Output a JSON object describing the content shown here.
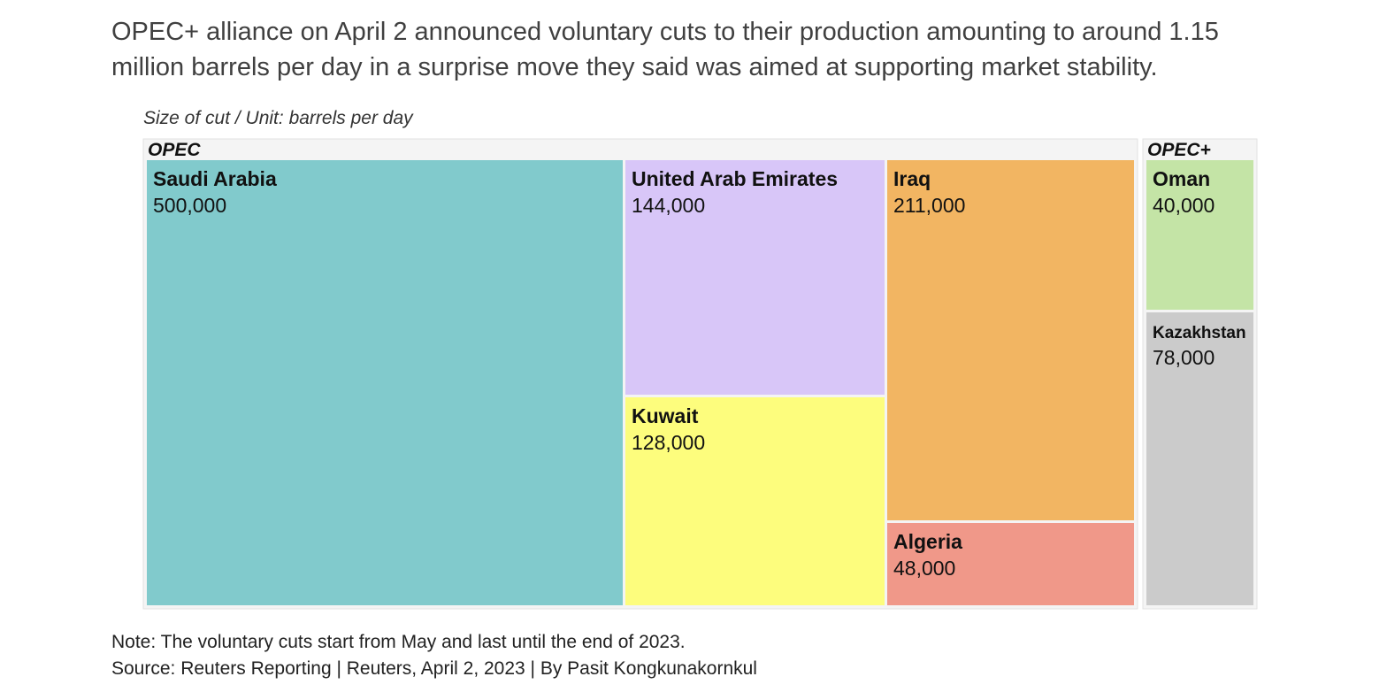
{
  "headline": "OPEC+ alliance on April 2 announced voluntary cuts to their production amounting to around 1.15 million barrels per day in a surprise move they said was aimed at supporting market stability.",
  "subtitle": "Size of cut / Unit: barrels per day",
  "chart_data": {
    "type": "treemap",
    "unit": "barrels per day",
    "groups": [
      {
        "name": "OPEC",
        "items": [
          {
            "label": "Saudi Arabia",
            "value": 500000,
            "value_text": "500,000",
            "color": "#81cacc"
          },
          {
            "label": "United Arab Emirates",
            "value": 144000,
            "value_text": "144,000",
            "color": "#d8c6f8"
          },
          {
            "label": "Kuwait",
            "value": 128000,
            "value_text": "128,000",
            "color": "#fdfd7d"
          },
          {
            "label": "Iraq",
            "value": 211000,
            "value_text": "211,000",
            "color": "#f2b562"
          },
          {
            "label": "Algeria",
            "value": 48000,
            "value_text": "48,000",
            "color": "#f09889"
          }
        ]
      },
      {
        "name": "OPEC+",
        "items": [
          {
            "label": "Oman",
            "value": 40000,
            "value_text": "40,000",
            "color": "#c4e4a6"
          },
          {
            "label": "Kazakhstan",
            "value": 78000,
            "value_text": "78,000",
            "color": "#cbcbcb"
          }
        ]
      }
    ]
  },
  "footer": {
    "note": "Note: The voluntary cuts start from May and last until the end of 2023.",
    "source": "Source: Reuters Reporting | Reuters, April 2, 2023 | By Pasit Kongkunakornkul"
  }
}
